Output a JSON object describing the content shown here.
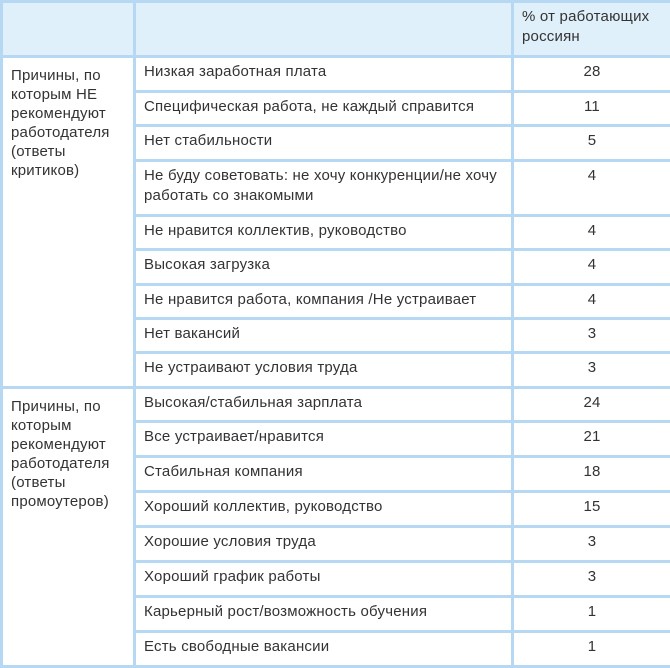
{
  "header": {
    "col1": "",
    "col2": "",
    "col3": "% от работающих россиян"
  },
  "groups": [
    {
      "label": "Причины, по которым НЕ рекомендуют работодателя (ответы критиков)",
      "rows": [
        {
          "reason": "Низкая заработная плата",
          "value": "28"
        },
        {
          "reason": "Специфическая работа, не каждый справится",
          "value": "11"
        },
        {
          "reason": "Нет стабильности",
          "value": "5"
        },
        {
          "reason": "Не буду советовать: не хочу конкуренции/не хочу работать со знакомыми",
          "value": "4"
        },
        {
          "reason": "Не нравится коллектив, руководство",
          "value": "4"
        },
        {
          "reason": "Высокая загрузка",
          "value": "4"
        },
        {
          "reason": "Не нравится работа, компания /Не устраивает",
          "value": "4"
        },
        {
          "reason": "Нет вакансий",
          "value": "3"
        },
        {
          "reason": "Не устраивают условия труда",
          "value": "3"
        }
      ]
    },
    {
      "label": "Причины, по которым рекомендуют работодателя (ответы промоутеров)",
      "rows": [
        {
          "reason": "Высокая/стабильная зарплата",
          "value": "24"
        },
        {
          "reason": "Все устраивает/нравится",
          "value": "21"
        },
        {
          "reason": "Стабильная компания",
          "value": "18"
        },
        {
          "reason": "Хороший коллектив, руководство",
          "value": "15"
        },
        {
          "reason": "Хорошие условия труда",
          "value": "3"
        },
        {
          "reason": "Хороший график работы",
          "value": "3"
        },
        {
          "reason": "Карьерный рост/возможность обучения",
          "value": "1"
        },
        {
          "reason": "Есть свободные вакансии",
          "value": "1"
        }
      ]
    }
  ]
}
